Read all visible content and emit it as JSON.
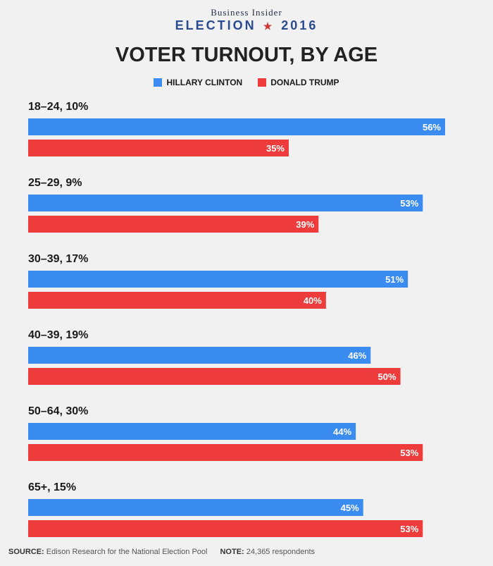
{
  "brand": {
    "top": "Business Insider",
    "bottom_left": "ELECTION",
    "bottom_right": "2016"
  },
  "chart_data": {
    "type": "bar",
    "orientation": "horizontal",
    "title": "VOTER TURNOUT, BY AGE",
    "categories": [
      "18–24, 10%",
      "25–29, 9%",
      "30–39, 17%",
      "40–39, 19%",
      "50–64, 30%",
      "65+, 15%"
    ],
    "series": [
      {
        "name": "HILLARY CLINTON",
        "color": "#3b8cf1",
        "values": [
          56,
          53,
          51,
          46,
          44,
          45
        ],
        "labels": [
          "56%",
          "53%",
          "51%",
          "46%",
          "44%",
          "45%"
        ]
      },
      {
        "name": "DONALD TRUMP",
        "color": "#ee3b3b",
        "values": [
          35,
          39,
          40,
          50,
          53,
          53
        ],
        "labels": [
          "35%",
          "39%",
          "40%",
          "50%",
          "53%",
          "53%"
        ]
      }
    ],
    "xlim": [
      0,
      56
    ],
    "grid": false,
    "legend_position": "top-center"
  },
  "footer": {
    "source_label": "SOURCE:",
    "source_text": "Edison Research for the National Election Pool",
    "note_label": "NOTE:",
    "note_text": "24,365 respondents"
  }
}
